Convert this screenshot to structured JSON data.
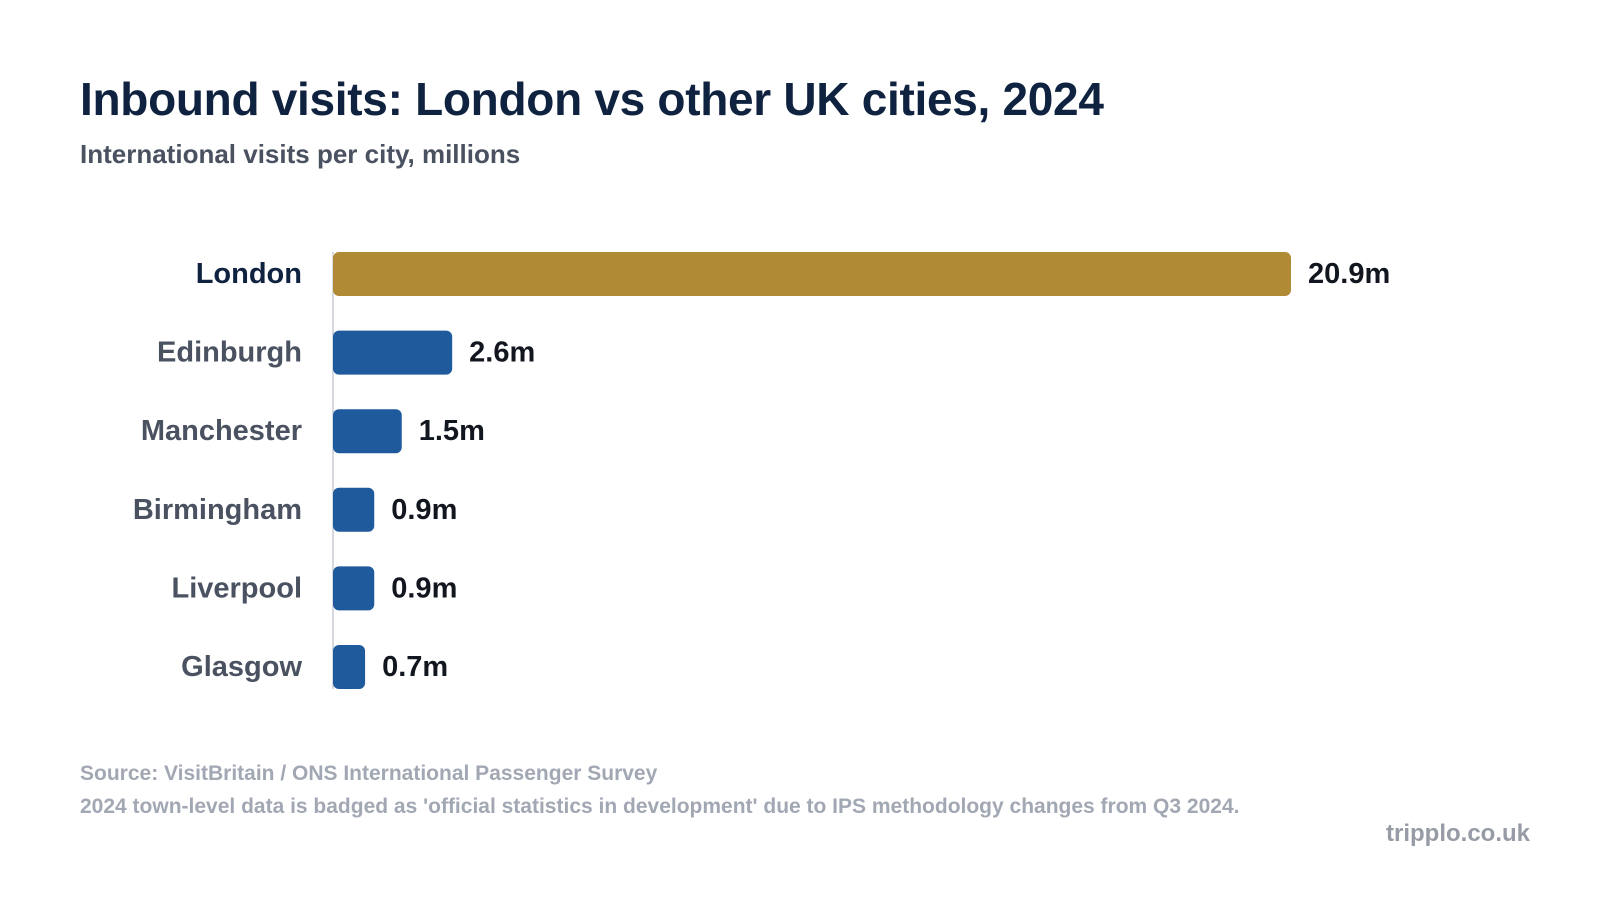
{
  "header": {
    "title": "Inbound visits: London vs other UK cities, 2024",
    "subtitle": "International visits per city, millions"
  },
  "chart_data": {
    "type": "bar",
    "orientation": "horizontal",
    "title": "Inbound visits: London vs other UK cities, 2024",
    "subtitle": "International visits per city, millions",
    "xlabel": "",
    "ylabel": "",
    "categories": [
      "London",
      "Edinburgh",
      "Manchester",
      "Birmingham",
      "Liverpool",
      "Glasgow"
    ],
    "values": [
      20.9,
      2.6,
      1.5,
      0.9,
      0.9,
      0.7
    ],
    "value_labels": [
      "20.9m",
      "2.6m",
      "1.5m",
      "0.9m",
      "0.9m",
      "0.7m"
    ],
    "highlight_category": "London",
    "xlim": [
      0,
      20.9
    ],
    "grid": false,
    "legend": "none",
    "colors": {
      "highlight": "#b08a35",
      "default": "#1f5a9c",
      "highlight_label": "#0f2340",
      "default_label": "#4a5261",
      "value_label": "#12161f"
    }
  },
  "footer": {
    "source": "Source: VisitBritain / ONS International Passenger Survey",
    "note": "2024 town-level data is badged as 'official statistics in development' due to IPS methodology changes from Q3 2024.",
    "brand": "tripplo.co.uk"
  }
}
